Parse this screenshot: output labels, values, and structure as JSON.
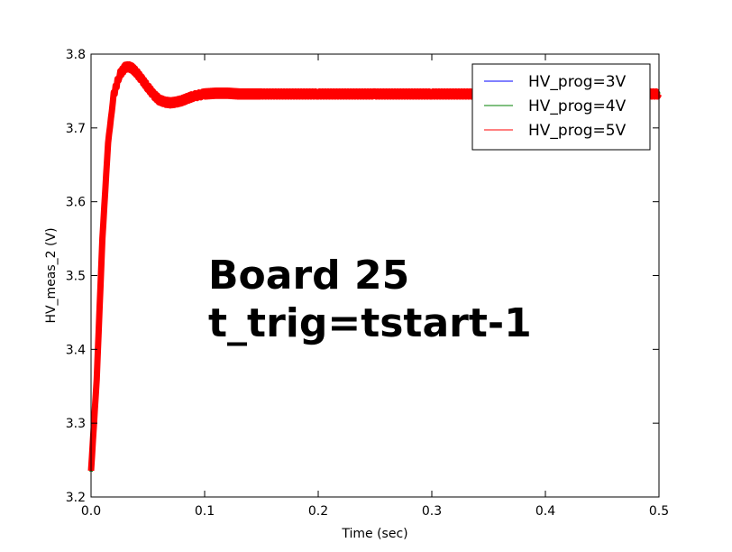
{
  "chart_data": {
    "type": "line",
    "xlabel": "Time (sec)",
    "ylabel": "HV_meas_2 (V)",
    "xlim": [
      0.0,
      0.5
    ],
    "ylim": [
      3.2,
      3.8
    ],
    "xticks": [
      "0.0",
      "0.1",
      "0.2",
      "0.3",
      "0.4",
      "0.5"
    ],
    "yticks": [
      "3.2",
      "3.3",
      "3.4",
      "3.5",
      "3.6",
      "3.7",
      "3.8"
    ],
    "grid": false,
    "legend_position": "top-right",
    "annotation": [
      "Board 25",
      "t_trig=tstart-1"
    ],
    "series": [
      {
        "name": "HV_prog=3V",
        "color": "#0000ff",
        "x": [
          0.0,
          0.005,
          0.01,
          0.015,
          0.02,
          0.025,
          0.03,
          0.033,
          0.036,
          0.04,
          0.045,
          0.05,
          0.055,
          0.06,
          0.065,
          0.07,
          0.075,
          0.08,
          0.085,
          0.09,
          0.1,
          0.11,
          0.12,
          0.13,
          0.15,
          0.2,
          0.25,
          0.3,
          0.35,
          0.4,
          0.45,
          0.5
        ],
        "values": [
          3.235,
          3.36,
          3.55,
          3.68,
          3.745,
          3.772,
          3.782,
          3.783,
          3.781,
          3.775,
          3.765,
          3.755,
          3.745,
          3.738,
          3.735,
          3.734,
          3.735,
          3.737,
          3.74,
          3.743,
          3.746,
          3.747,
          3.747,
          3.746,
          3.746,
          3.746,
          3.746,
          3.746,
          3.746,
          3.746,
          3.746,
          3.746
        ]
      },
      {
        "name": "HV_prog=4V",
        "color": "#008000",
        "x": [
          0.0,
          0.005,
          0.01,
          0.015,
          0.02,
          0.025,
          0.03,
          0.033,
          0.036,
          0.04,
          0.045,
          0.05,
          0.055,
          0.06,
          0.065,
          0.07,
          0.075,
          0.08,
          0.085,
          0.09,
          0.1,
          0.11,
          0.12,
          0.13,
          0.15,
          0.2,
          0.25,
          0.3,
          0.35,
          0.4,
          0.45,
          0.5
        ],
        "values": [
          3.235,
          3.36,
          3.55,
          3.68,
          3.745,
          3.772,
          3.782,
          3.783,
          3.781,
          3.775,
          3.765,
          3.755,
          3.745,
          3.738,
          3.735,
          3.734,
          3.735,
          3.737,
          3.74,
          3.743,
          3.746,
          3.747,
          3.747,
          3.746,
          3.746,
          3.746,
          3.746,
          3.746,
          3.746,
          3.746,
          3.746,
          3.746
        ]
      },
      {
        "name": "HV_prog=5V",
        "color": "#ff0000",
        "x": [
          0.0,
          0.005,
          0.01,
          0.015,
          0.02,
          0.025,
          0.03,
          0.033,
          0.036,
          0.04,
          0.045,
          0.05,
          0.055,
          0.06,
          0.065,
          0.07,
          0.075,
          0.08,
          0.085,
          0.09,
          0.1,
          0.11,
          0.12,
          0.13,
          0.15,
          0.2,
          0.25,
          0.3,
          0.35,
          0.4,
          0.45,
          0.5
        ],
        "values": [
          3.235,
          3.36,
          3.55,
          3.68,
          3.745,
          3.772,
          3.782,
          3.783,
          3.781,
          3.775,
          3.765,
          3.755,
          3.745,
          3.738,
          3.735,
          3.734,
          3.735,
          3.737,
          3.74,
          3.743,
          3.746,
          3.747,
          3.747,
          3.746,
          3.746,
          3.746,
          3.746,
          3.746,
          3.746,
          3.746,
          3.746,
          3.746
        ]
      }
    ]
  }
}
